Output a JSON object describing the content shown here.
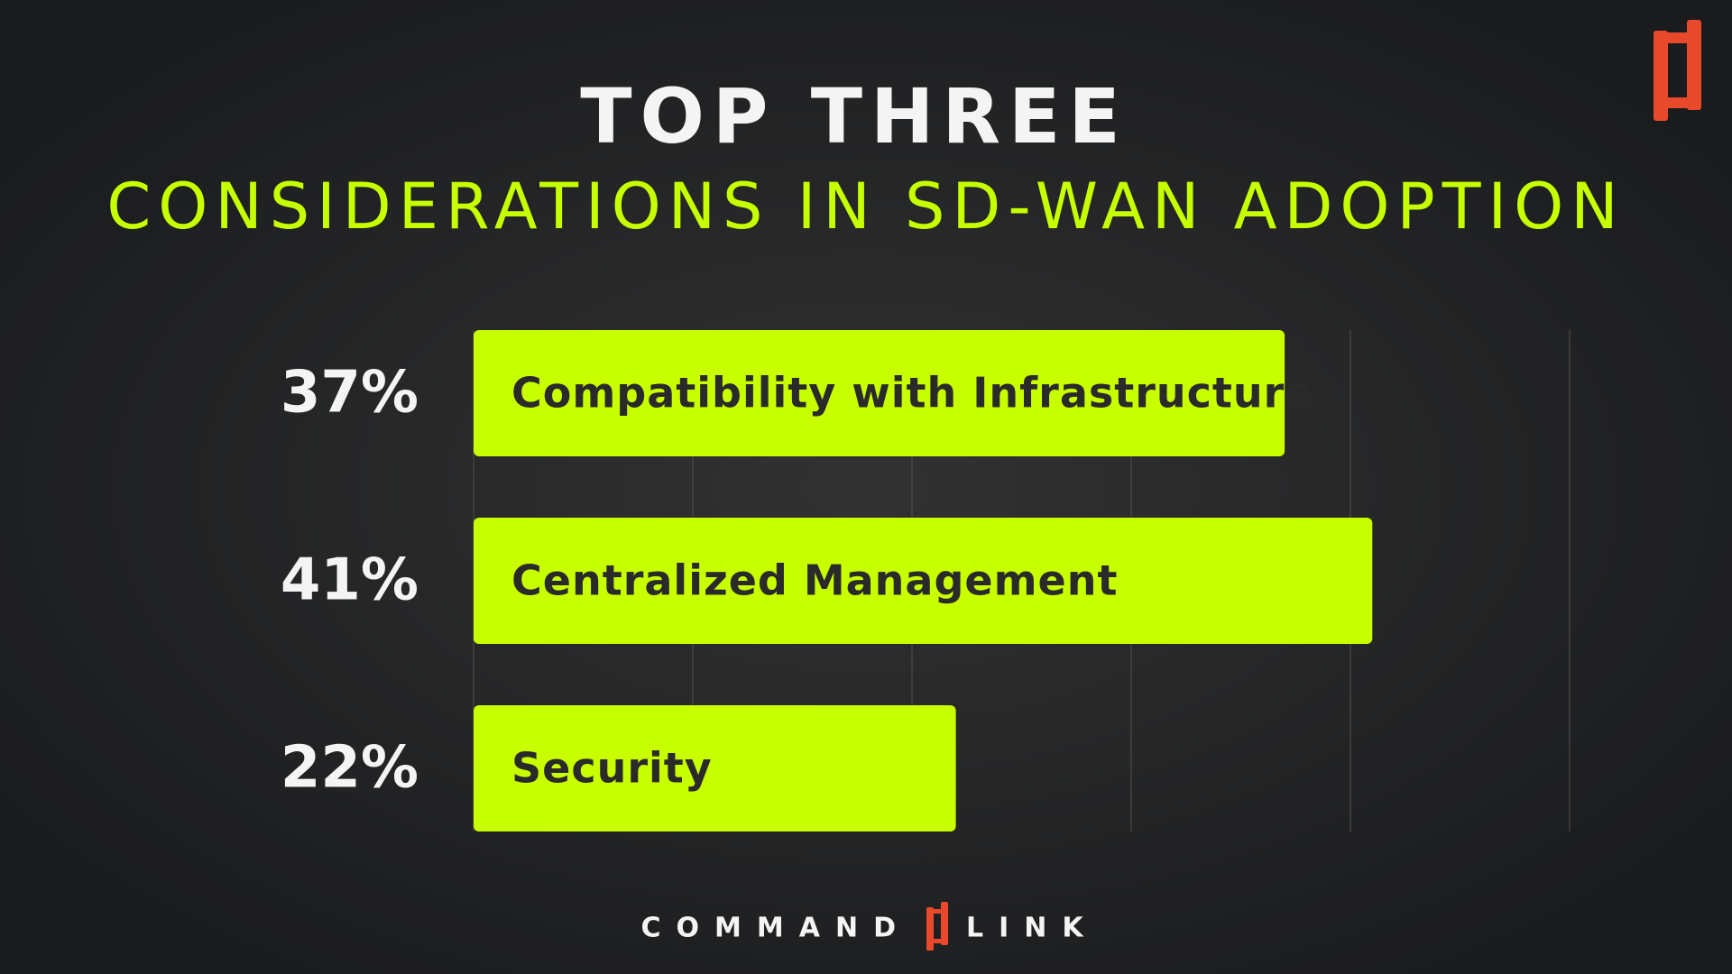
{
  "chart_data": {
    "type": "bar",
    "orientation": "horizontal",
    "title": "TOP THREE",
    "subtitle": "CONSIDERATIONS IN SD-WAN ADOPTION",
    "categories": [
      "Compatibility with Infrastructure",
      "Centralized Management",
      "Security"
    ],
    "values": [
      37,
      41,
      22
    ],
    "value_labels": [
      "37%",
      "41%",
      "22%"
    ],
    "color": "#c8ff00",
    "xlim": [
      0,
      50
    ],
    "xticks": [
      0,
      10,
      20,
      30,
      40,
      50
    ],
    "grid": true
  },
  "footer": {
    "left": "COMMAND",
    "right": "LINK"
  }
}
